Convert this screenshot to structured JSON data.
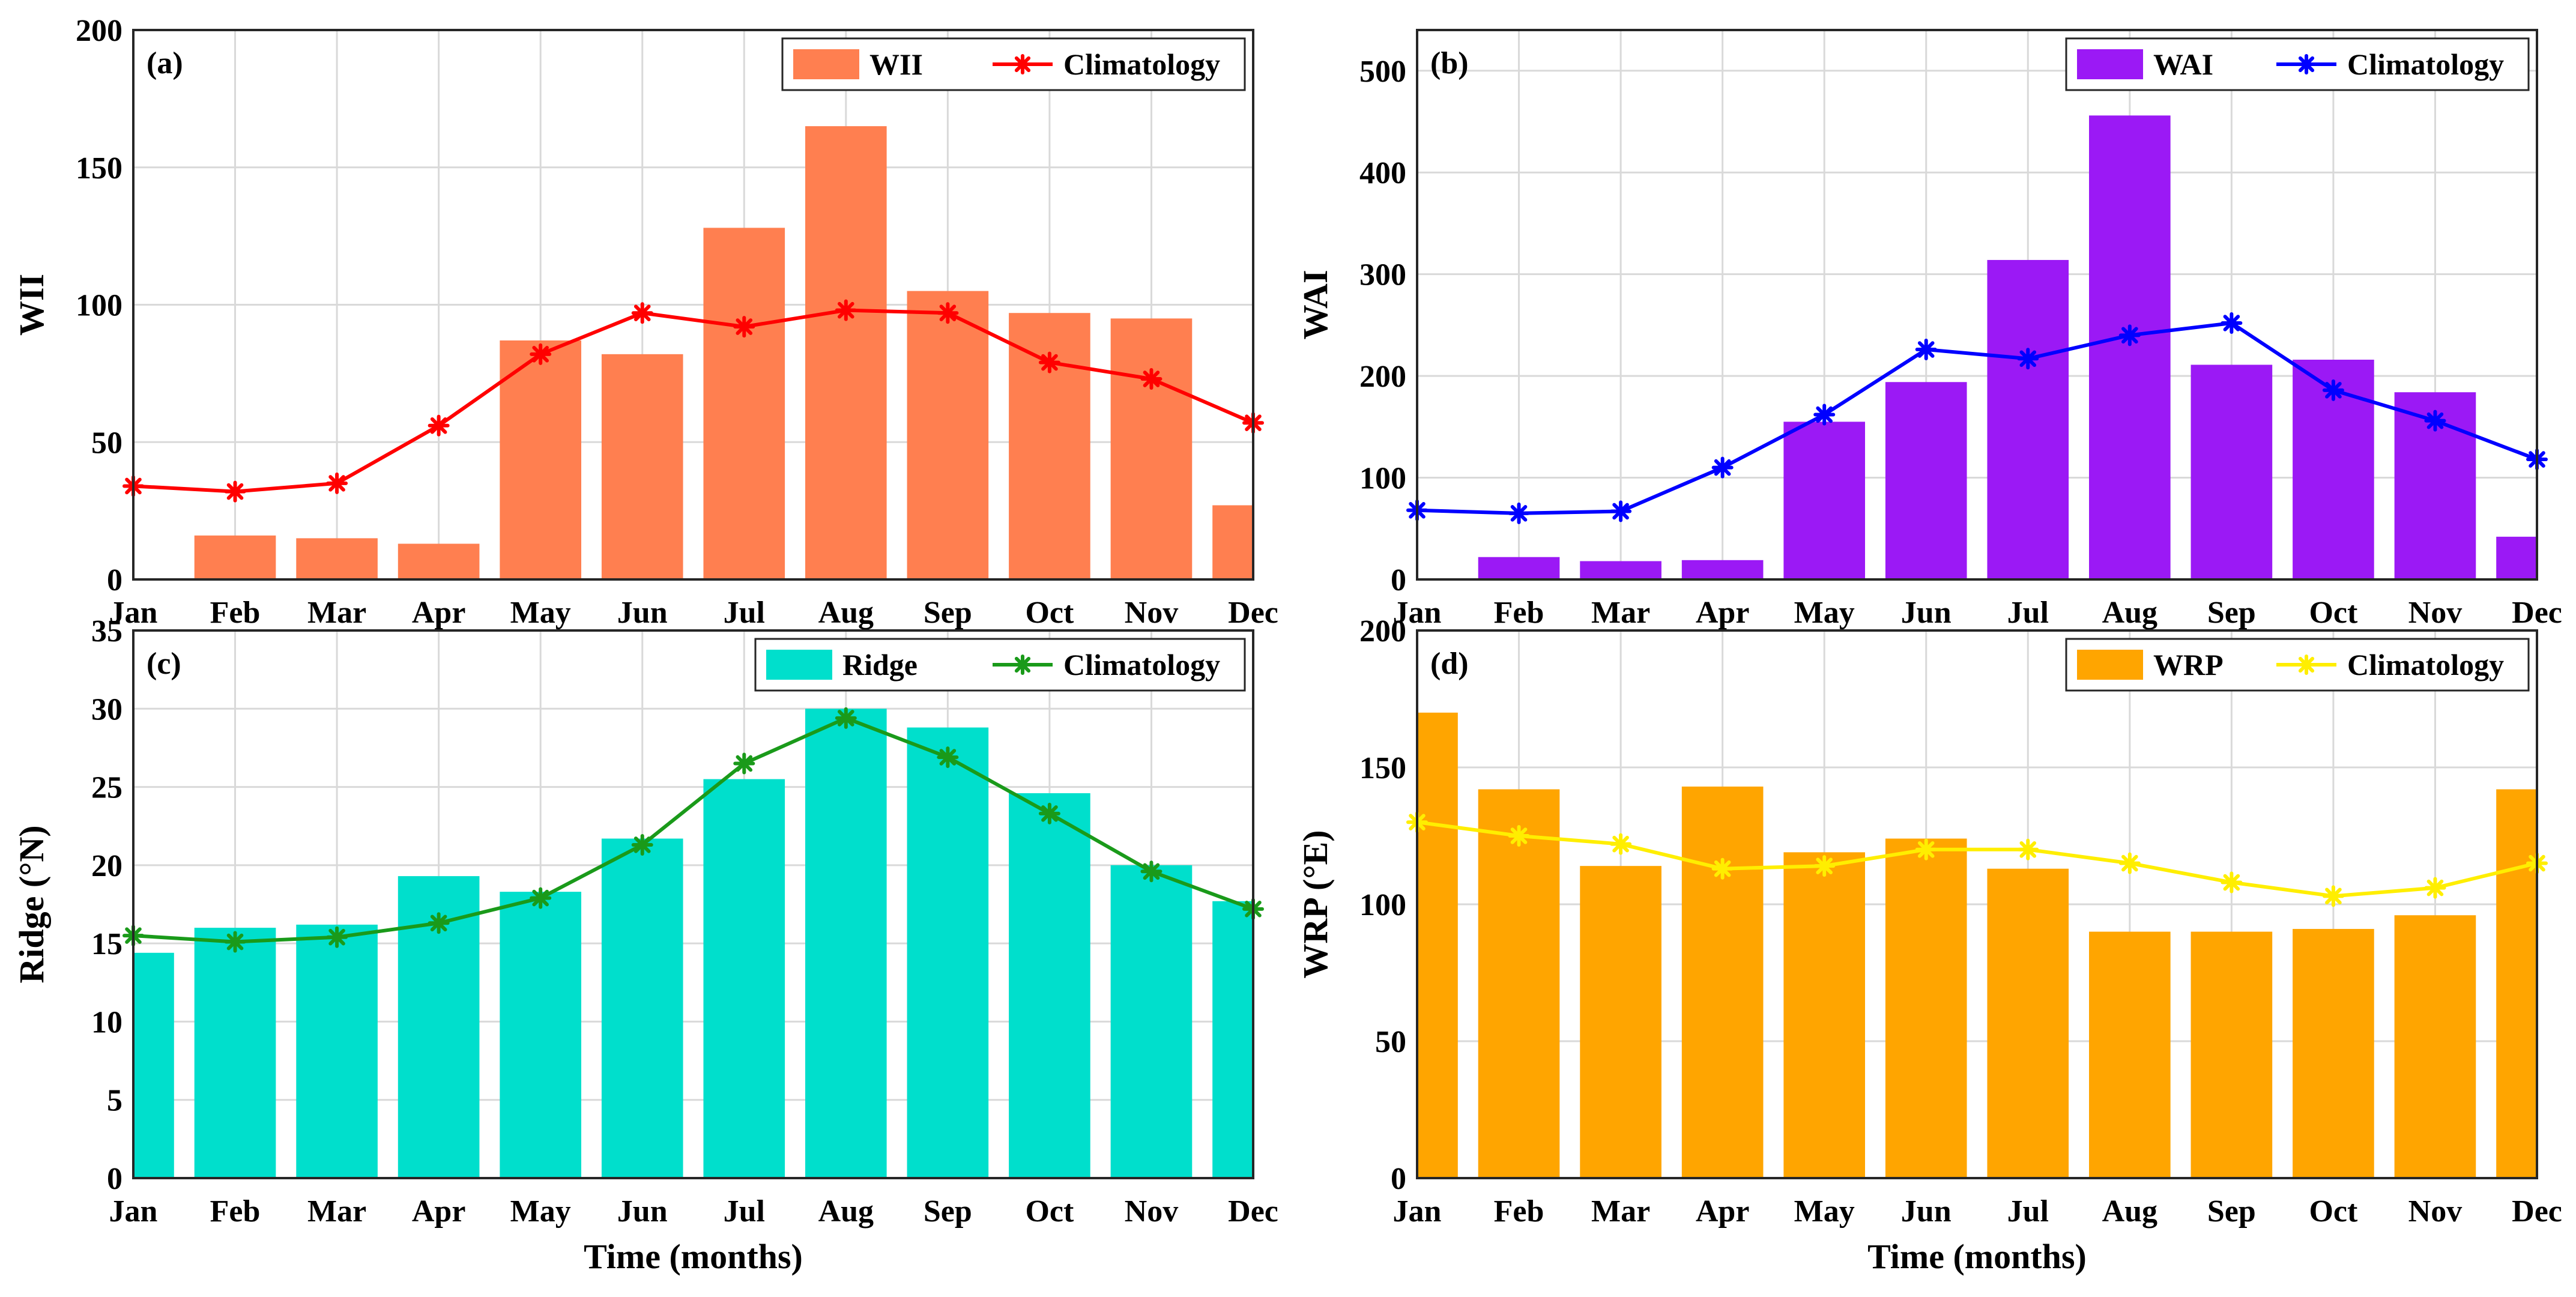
{
  "figure": {
    "xlabel": "Time (months)",
    "months": [
      "Jan",
      "Feb",
      "Mar",
      "Apr",
      "May",
      "Jun",
      "Jul",
      "Aug",
      "Sep",
      "Oct",
      "Nov",
      "Dec"
    ]
  },
  "chart_data": [
    {
      "type": "bar",
      "panel": "(a)",
      "ylabel": "WII",
      "xlabel": "",
      "ylim": [
        0,
        200
      ],
      "yticks": [
        "0",
        "50",
        "100",
        "150",
        "200"
      ],
      "yticks_values": [
        0,
        50,
        100,
        150,
        200
      ],
      "categories": [
        "Jan",
        "Feb",
        "Mar",
        "Apr",
        "May",
        "Jun",
        "Jul",
        "Aug",
        "Sep",
        "Oct",
        "Nov",
        "Dec"
      ],
      "grid": true,
      "legend_position": "top-right",
      "series": [
        {
          "name": "WII",
          "kind": "bar",
          "color": "#ff7f50",
          "values": [
            0,
            16,
            15,
            13,
            87,
            82,
            128,
            165,
            105,
            97,
            95,
            27
          ]
        },
        {
          "name": "Climatology",
          "kind": "line",
          "color": "#ff0000",
          "values": [
            34,
            32,
            35,
            56,
            82,
            97,
            92,
            98,
            97,
            79,
            73,
            57
          ]
        }
      ]
    },
    {
      "type": "bar",
      "panel": "(b)",
      "ylabel": "WAI",
      "xlabel": "",
      "ylim": [
        0,
        540
      ],
      "yticks": [
        "0",
        "100",
        "200",
        "300",
        "400",
        "500"
      ],
      "yticks_values": [
        0,
        100,
        200,
        300,
        400,
        500
      ],
      "categories": [
        "Jan",
        "Feb",
        "Mar",
        "Apr",
        "May",
        "Jun",
        "Jul",
        "Aug",
        "Sep",
        "Oct",
        "Nov",
        "Dec"
      ],
      "grid": true,
      "legend_position": "top-right",
      "series": [
        {
          "name": "WAI",
          "kind": "bar",
          "color": "#9b19f5",
          "values": [
            0,
            22,
            18,
            19,
            155,
            194,
            314,
            456,
            211,
            216,
            184,
            42
          ]
        },
        {
          "name": "Climatology",
          "kind": "line",
          "color": "#0000ff",
          "values": [
            68,
            65,
            67,
            110,
            162,
            226,
            217,
            240,
            252,
            186,
            156,
            118
          ]
        }
      ]
    },
    {
      "type": "bar",
      "panel": "(c)",
      "ylabel": "Ridge (°N)",
      "xlabel": "Time (months)",
      "ylim": [
        0,
        35
      ],
      "yticks": [
        "0",
        "5",
        "10",
        "15",
        "20",
        "25",
        "30",
        "35"
      ],
      "yticks_values": [
        0,
        5,
        10,
        15,
        20,
        25,
        30,
        35
      ],
      "categories": [
        "Jan",
        "Feb",
        "Mar",
        "Apr",
        "May",
        "Jun",
        "Jul",
        "Aug",
        "Sep",
        "Oct",
        "Nov",
        "Dec"
      ],
      "grid": true,
      "legend_position": "top-right",
      "series": [
        {
          "name": "Ridge",
          "kind": "bar",
          "color": "#00dfcc",
          "values": [
            14.4,
            16,
            16.2,
            19.3,
            18.3,
            21.7,
            25.5,
            30,
            28.8,
            24.6,
            20,
            17.7
          ]
        },
        {
          "name": "Climatology",
          "kind": "line",
          "color": "#1a9a1a",
          "values": [
            15.5,
            15.1,
            15.4,
            16.3,
            17.9,
            21.3,
            26.5,
            29.4,
            26.9,
            23.3,
            19.6,
            17.2
          ]
        }
      ]
    },
    {
      "type": "bar",
      "panel": "(d)",
      "ylabel": "WRP (°E)",
      "xlabel": "Time (months)",
      "ylim": [
        0,
        200
      ],
      "yticks": [
        "0",
        "50",
        "100",
        "150",
        "200"
      ],
      "yticks_values": [
        0,
        50,
        100,
        150,
        200
      ],
      "categories": [
        "Jan",
        "Feb",
        "Mar",
        "Apr",
        "May",
        "Jun",
        "Jul",
        "Aug",
        "Sep",
        "Oct",
        "Nov",
        "Dec"
      ],
      "grid": true,
      "legend_position": "top-right",
      "series": [
        {
          "name": "WRP",
          "kind": "bar",
          "color": "#ffa500",
          "values": [
            170,
            142,
            114,
            143,
            119,
            124,
            113,
            90,
            90,
            91,
            96,
            142
          ]
        },
        {
          "name": "Climatology",
          "kind": "line",
          "color": "#ffee00",
          "values": [
            130,
            125,
            122,
            113,
            114,
            120,
            120,
            115,
            108,
            103,
            106,
            115
          ]
        }
      ]
    }
  ]
}
